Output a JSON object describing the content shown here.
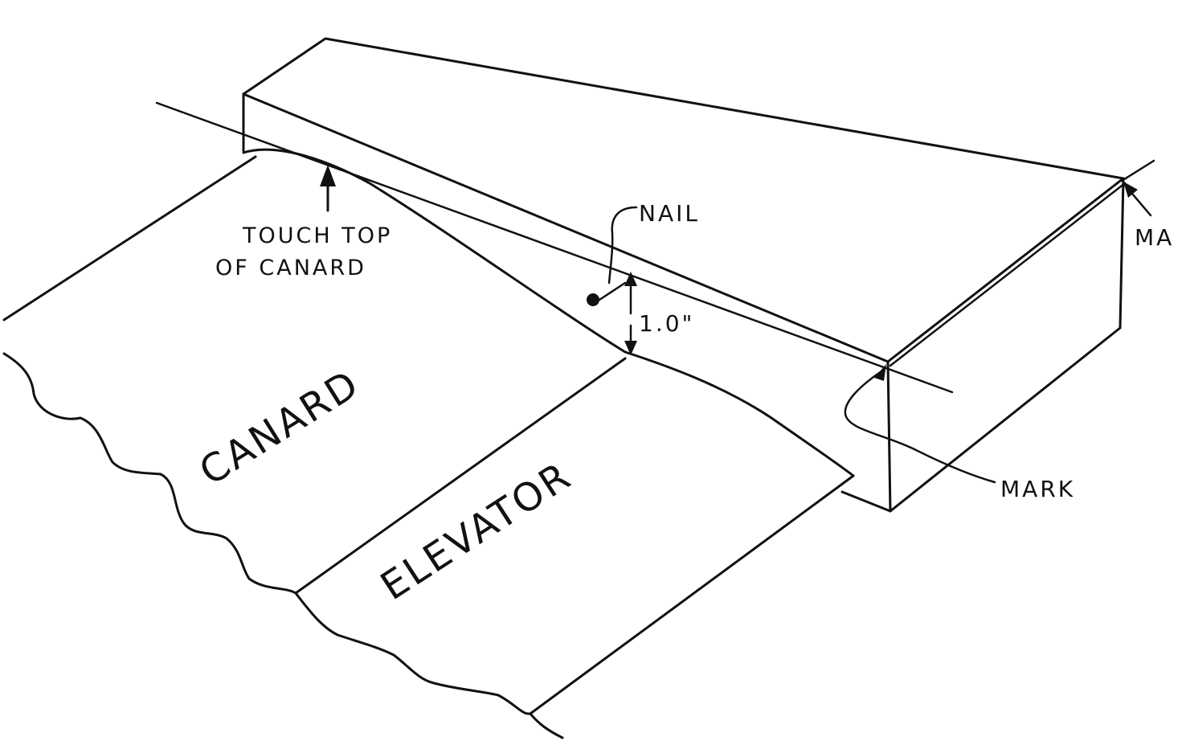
{
  "labels": {
    "touch_line1": "TOUCH TOP",
    "touch_line2": "OF CANARD",
    "nail": "NAIL",
    "dimension": "1.0\"",
    "canard": "CANARD",
    "elevator": "ELEVATOR",
    "mark_lower": "MARK",
    "mark_upper": "MA"
  },
  "colors": {
    "ink": "#111111",
    "paper": "#ffffff"
  }
}
